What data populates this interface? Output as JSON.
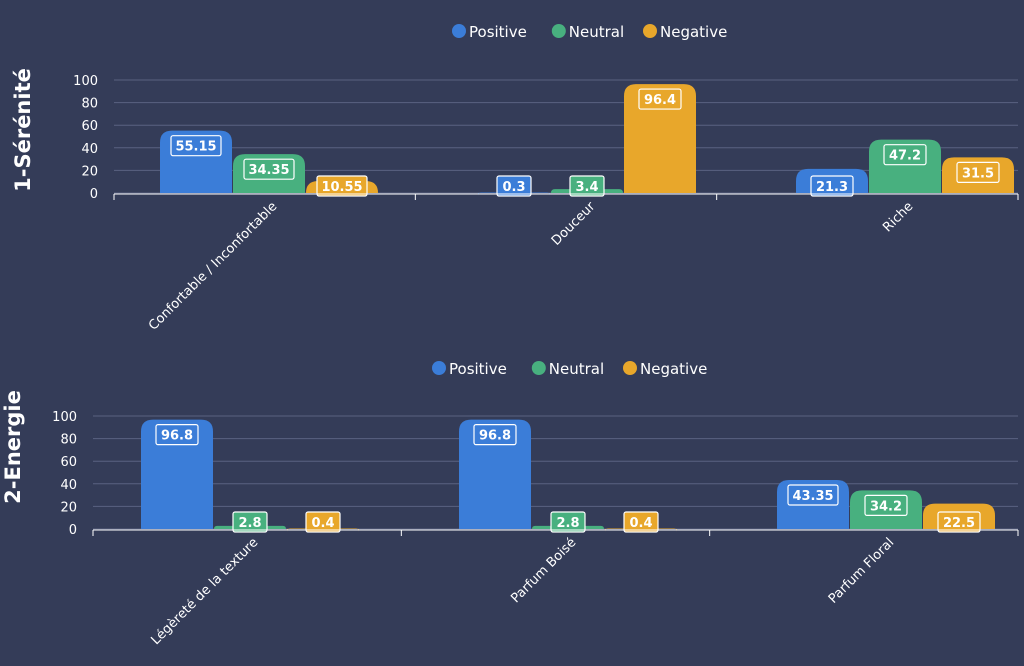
{
  "colors": {
    "background": "#343c58",
    "positive": "#3b7dd8",
    "neutral": "#48b07f",
    "negative": "#e8a72b",
    "gridline": "#5a6281",
    "axis_text": "#ffffff"
  },
  "chart_data": [
    {
      "type": "bar",
      "title": "1-Sérénité",
      "legend_position": "top-center",
      "grid": true,
      "ylim": [
        0,
        100
      ],
      "yticks": [
        0,
        20,
        40,
        60,
        80,
        100
      ],
      "categories": [
        "Confortable / Inconfortable",
        "Douceur",
        "Riche"
      ],
      "series": [
        {
          "name": "Positive",
          "color": "#3b7dd8",
          "values": [
            55.15,
            0.3,
            21.3
          ]
        },
        {
          "name": "Neutral",
          "color": "#48b07f",
          "values": [
            34.35,
            3.4,
            47.2
          ]
        },
        {
          "name": "Negative",
          "color": "#e8a72b",
          "values": [
            10.55,
            96.4,
            31.5
          ]
        }
      ]
    },
    {
      "type": "bar",
      "title": "2-Energie",
      "legend_position": "top-center",
      "grid": true,
      "ylim": [
        0,
        100
      ],
      "yticks": [
        0,
        20,
        40,
        60,
        80,
        100
      ],
      "categories": [
        "Légèreté de la texture",
        "Parfum Boisé",
        "Parfum Floral"
      ],
      "series": [
        {
          "name": "Positive",
          "color": "#3b7dd8",
          "values": [
            96.8,
            96.8,
            43.35
          ]
        },
        {
          "name": "Neutral",
          "color": "#48b07f",
          "values": [
            2.8,
            2.8,
            34.2
          ]
        },
        {
          "name": "Negative",
          "color": "#e8a72b",
          "values": [
            0.4,
            0.4,
            22.5
          ]
        }
      ]
    }
  ]
}
